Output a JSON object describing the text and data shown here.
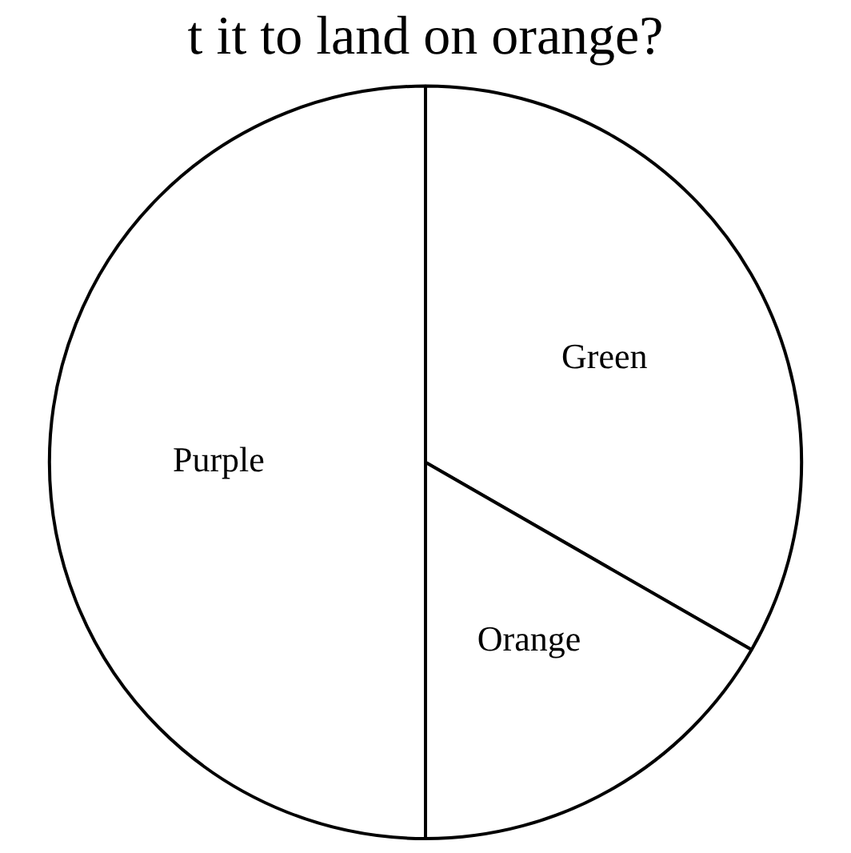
{
  "chart_data": {
    "type": "pie",
    "title": "t it to land on orange?",
    "categories": [
      "Green",
      "Orange",
      "Purple"
    ],
    "values": [
      33.3,
      16.7,
      50
    ],
    "colors": [
      "#ffffff",
      "#ffffff",
      "#ffffff"
    ],
    "legend": false
  }
}
